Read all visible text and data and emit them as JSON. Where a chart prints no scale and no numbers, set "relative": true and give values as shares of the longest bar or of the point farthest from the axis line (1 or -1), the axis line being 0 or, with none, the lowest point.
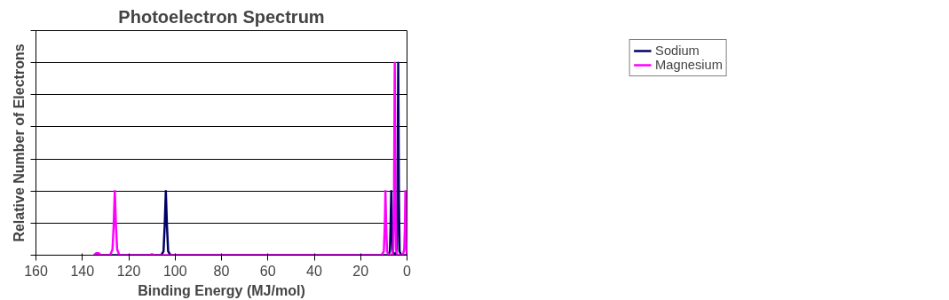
{
  "chart_data": {
    "type": "line",
    "title": "Photoelectron Spectrum",
    "xlabel": "Binding Energy (MJ/mol)",
    "ylabel": "Relative Number of Electrons",
    "relative": true,
    "xlim": [
      160,
      0
    ],
    "xticks": [
      160,
      140,
      120,
      100,
      80,
      60,
      40,
      20,
      0
    ],
    "grid": "y",
    "legend": "right",
    "marker": "none",
    "line_style": "solid",
    "series": [
      {
        "name": "Sodium",
        "color": "#000066",
        "x": [
          135,
          106,
          105,
          104.5,
          104,
          103.5,
          103,
          102,
          8,
          7.4,
          7.1,
          6.8,
          6.5,
          6.2,
          5,
          4.4,
          4.1,
          3.8,
          3.5,
          3.2,
          2.5,
          0
        ],
        "values": [
          0,
          0,
          0.02,
          0.15,
          0.333,
          0.15,
          0.02,
          0,
          0,
          0.02,
          0.15,
          0.333,
          0.15,
          0.02,
          0,
          0.02,
          0.3,
          1,
          0.3,
          0.02,
          0,
          0
        ]
      },
      {
        "name": "Magnesium",
        "color": "#ff00ff",
        "x": [
          135,
          134,
          133,
          132,
          128,
          127,
          126.5,
          126,
          125.5,
          125,
          124,
          111,
          110,
          109,
          11,
          10,
          9.6,
          9.3,
          9,
          8.6,
          8,
          6.5,
          5.9,
          5.6,
          5.3,
          5,
          4.7,
          4.2,
          1.8,
          1.2,
          0.9,
          0.7,
          0.5,
          0.2,
          0
        ],
        "values": [
          0,
          0.01,
          0.01,
          0,
          0,
          0.03,
          0.15,
          0.333,
          0.15,
          0.03,
          0,
          0,
          0.005,
          0,
          0,
          0.02,
          0.15,
          0.333,
          0.15,
          0.02,
          0,
          0,
          0.03,
          0.3,
          1,
          0.3,
          0.03,
          0,
          0,
          0.03,
          0.15,
          0.333,
          0.15,
          0.02,
          0
        ]
      }
    ]
  }
}
